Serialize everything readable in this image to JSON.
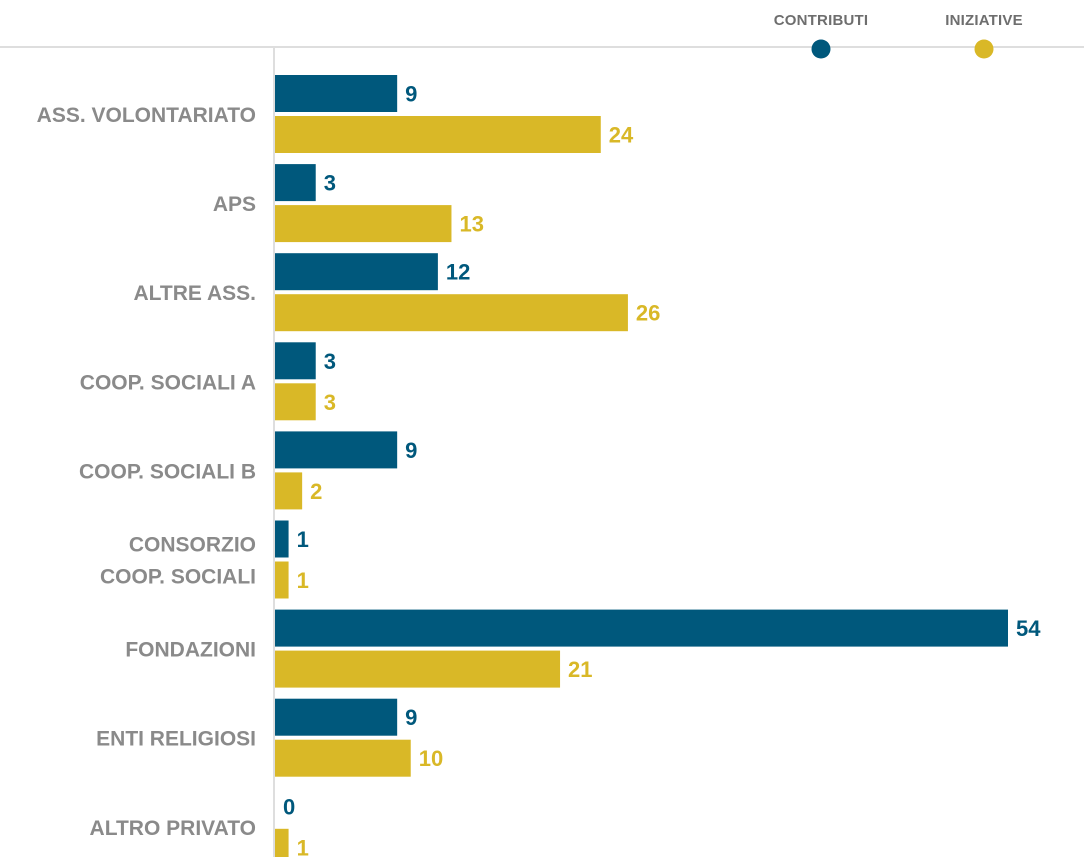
{
  "chart_data": {
    "type": "bar",
    "orientation": "horizontal",
    "categories": [
      "ASS. VOLONTARIATO",
      "APS",
      "ALTRE ASS.",
      "COOP. SOCIALI A",
      "COOP. SOCIALI B",
      "CONSORZIO COOP. SOCIALI",
      "FONDAZIONI",
      "ENTI RELIGIOSI",
      "ALTRO PRIVATO"
    ],
    "category_lines": [
      [
        "ASS. VOLONTARIATO"
      ],
      [
        "APS"
      ],
      [
        "ALTRE ASS."
      ],
      [
        "COOP. SOCIALI A"
      ],
      [
        "COOP. SOCIALI B"
      ],
      [
        "CONSORZIO",
        "COOP. SOCIALI"
      ],
      [
        "FONDAZIONI"
      ],
      [
        "ENTI RELIGIOSI"
      ],
      [
        "ALTRO PRIVATO"
      ]
    ],
    "series": [
      {
        "name": "CONTRIBUTI",
        "color": "#00587c",
        "values": [
          9,
          3,
          12,
          3,
          9,
          1,
          54,
          9,
          0
        ]
      },
      {
        "name": "INIZIATIVE",
        "color": "#d9b827",
        "values": [
          24,
          13,
          26,
          3,
          2,
          1,
          21,
          10,
          1
        ]
      }
    ],
    "xlim": [
      0,
      54
    ],
    "legend_position": "top-right",
    "grid": false,
    "title": "",
    "xlabel": "",
    "ylabel": ""
  }
}
